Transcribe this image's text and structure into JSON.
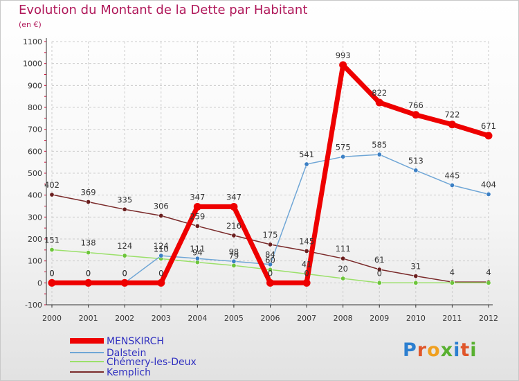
{
  "header": {
    "title": "Evolution du Montant de la Dette par Habitant",
    "unit": "(en €)"
  },
  "logo": {
    "text": "Proxiti"
  },
  "colors": {
    "title": "#b0185a",
    "grid": "#cccccc",
    "axis": "#333333",
    "tick_minor": "#d0103a"
  },
  "chart_data": {
    "type": "line",
    "title": "Evolution du Montant de la Dette par Habitant",
    "subtitle": "(en €)",
    "xlabel": "",
    "ylabel": "",
    "x": [
      "2000",
      "2001",
      "2002",
      "2003",
      "2004",
      "2005",
      "2006",
      "2007",
      "2008",
      "2009",
      "2010",
      "2011",
      "2012"
    ],
    "ylim": [
      -100,
      1100
    ],
    "yticks": [
      -100,
      0,
      100,
      200,
      300,
      400,
      500,
      600,
      700,
      800,
      900,
      1000,
      1100
    ],
    "grid": "horizontal dashed",
    "legend_position": "bottom-left",
    "series": [
      {
        "name": "MENSKIRCH",
        "color": "#ee0000",
        "marker": "#ee0000",
        "width": 7,
        "values": [
          0,
          0,
          0,
          0,
          347,
          347,
          0,
          0,
          993,
          822,
          766,
          722,
          671
        ],
        "labels": [
          "0",
          "0",
          "0",
          "0",
          "347",
          "347",
          "0",
          "0",
          "993",
          "822",
          "766",
          "722",
          "671"
        ]
      },
      {
        "name": "Dalstein",
        "color": "#6fa6d6",
        "marker": "#3b7fc4",
        "width": 1.5,
        "values": [
          0,
          0,
          0,
          124,
          111,
          98,
          84,
          541,
          575,
          585,
          513,
          445,
          404
        ],
        "labels": [
          "0",
          "0",
          "0",
          "124",
          "111",
          "98",
          "84",
          "541",
          "575",
          "585",
          "513",
          "445",
          "404"
        ]
      },
      {
        "name": "Chémery-les-Deux",
        "color": "#9be06a",
        "marker": "#6cc43a",
        "width": 1.5,
        "values": [
          151,
          138,
          124,
          110,
          94,
          79,
          60,
          41,
          20,
          0,
          0,
          0,
          0
        ],
        "labels": [
          "151",
          "138",
          "124",
          "110",
          "94",
          "79",
          "60",
          "41",
          "20",
          "0",
          "",
          "",
          ""
        ]
      },
      {
        "name": "Kemplich",
        "color": "#7a2a2a",
        "marker": "#6a1e1e",
        "width": 1.5,
        "values": [
          402,
          369,
          335,
          306,
          259,
          216,
          175,
          145,
          111,
          61,
          31,
          4,
          4
        ],
        "labels": [
          "402",
          "369",
          "335",
          "306",
          "259",
          "216",
          "175",
          "145",
          "111",
          "61",
          "31",
          "4",
          "4"
        ]
      }
    ]
  }
}
